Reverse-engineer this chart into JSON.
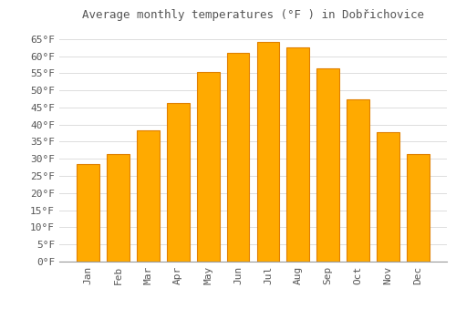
{
  "title": "Average monthly temperatures (°F ) in Dobřichovice",
  "months": [
    "Jan",
    "Feb",
    "Mar",
    "Apr",
    "May",
    "Jun",
    "Jul",
    "Aug",
    "Sep",
    "Oct",
    "Nov",
    "Dec"
  ],
  "values": [
    28.4,
    31.3,
    38.3,
    46.4,
    55.4,
    61.0,
    64.2,
    62.6,
    56.5,
    47.5,
    37.9,
    31.3
  ],
  "bar_color": "#FFAA00",
  "bar_edge_color": "#E08000",
  "background_color": "#FFFFFF",
  "grid_color": "#DDDDDD",
  "text_color": "#555555",
  "title_font": "monospace",
  "tick_font": "monospace",
  "ylim": [
    0,
    68
  ],
  "yticks": [
    0,
    5,
    10,
    15,
    20,
    25,
    30,
    35,
    40,
    45,
    50,
    55,
    60,
    65
  ],
  "ylabel_suffix": "°F"
}
